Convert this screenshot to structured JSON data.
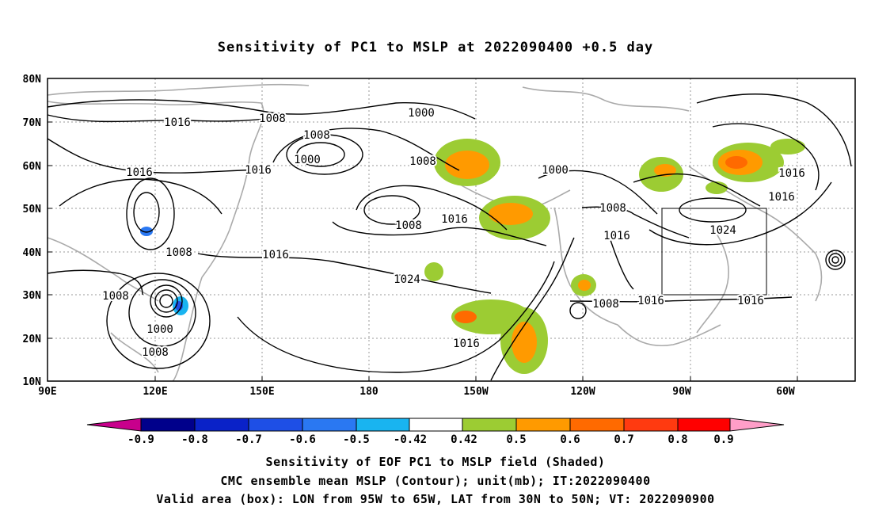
{
  "title": "Sensitivity of PC1 to MSLP at 2022090400 +0.5 day",
  "map": {
    "lat_labels": [
      "80N",
      "70N",
      "60N",
      "50N",
      "40N",
      "30N",
      "20N",
      "10N"
    ],
    "lon_labels": [
      "90E",
      "120E",
      "150E",
      "180",
      "150W",
      "120W",
      "90W",
      "60W"
    ],
    "contour_labels": [
      "1016",
      "1008",
      "1000",
      "1008",
      "1000",
      "1016",
      "1016",
      "1008",
      "1008",
      "1016",
      "1000",
      "1008",
      "1008",
      "1016",
      "1024",
      "1016",
      "1008",
      "1008",
      "1000",
      "1008",
      "1016",
      "1016",
      "1016",
      "1024",
      "1016",
      "1016",
      "1008"
    ],
    "valid_box": {
      "lon_range": [
        "95W",
        "65W"
      ],
      "lat_range": [
        "30N",
        "50N"
      ]
    }
  },
  "colorbar": {
    "labels": [
      "-0.9",
      "-0.8",
      "-0.7",
      "-0.6",
      "-0.5",
      "-0.42",
      "0.42",
      "0.5",
      "0.6",
      "0.7",
      "0.8",
      "0.9"
    ],
    "colors": [
      "#00008b",
      "#0a22c8",
      "#1e4fe6",
      "#2a78f2",
      "#19b4f0",
      "#ffffff",
      "#9ccc33",
      "#ff9a00",
      "#ff6a00",
      "#ff3a10",
      "#ff0000"
    ],
    "under_color": "#c8008c",
    "over_color": "#ff9ec8"
  },
  "captions": [
    "Sensitivity of EOF PC1 to MSLP field (Shaded)",
    "CMC ensemble mean MSLP (Contour); unit(mb); IT:2022090400",
    "Valid area (box): LON from 95W to 65W, LAT from 30N to 50N; VT: 2022090900"
  ]
}
